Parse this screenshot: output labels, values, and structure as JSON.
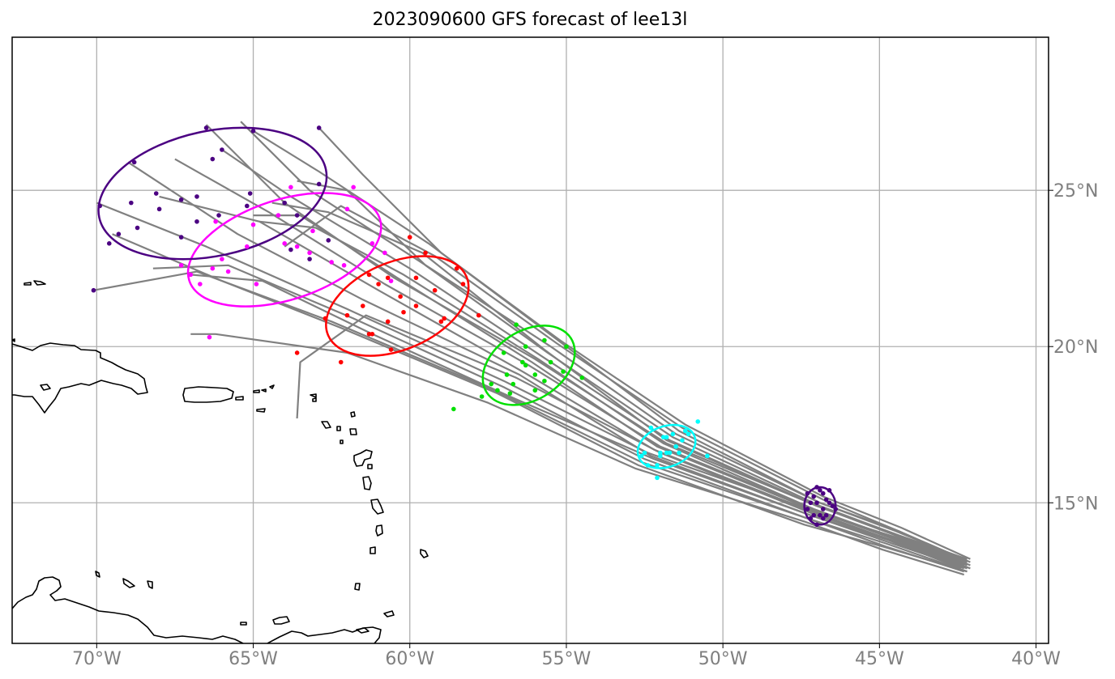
{
  "title": "2023090600 GFS forecast of lee13l",
  "map": {
    "lon_range": [
      -72.7,
      -39.6
    ],
    "lat_range": [
      10.5,
      29.9
    ],
    "lon_ticks": [
      {
        "value": -70,
        "label": "70°W"
      },
      {
        "value": -65,
        "label": "65°W"
      },
      {
        "value": -60,
        "label": "60°W"
      },
      {
        "value": -55,
        "label": "55°W"
      },
      {
        "value": -50,
        "label": "50°W"
      },
      {
        "value": -45,
        "label": "45°W"
      },
      {
        "value": -40,
        "label": "40°W"
      }
    ],
    "lat_ticks": [
      {
        "value": 15,
        "label": "15°N"
      },
      {
        "value": 20,
        "label": "20°N"
      },
      {
        "value": 25,
        "label": "25°N"
      }
    ],
    "grid": true,
    "colors": {
      "track": "#808080",
      "coast": "#000000",
      "grid": "#b0b0b0",
      "tick_text": "#7f7f7f"
    }
  },
  "chart_data": {
    "type": "map",
    "start_point": {
      "lon": -42.2,
      "lat": 13.0
    },
    "ensemble_tracks": [
      [
        [
          -42.2,
          13.2
        ],
        [
          -44.5,
          14.0
        ],
        [
          -47.0,
          14.9
        ],
        [
          -51.8,
          16.9
        ],
        [
          -56.0,
          19.6
        ],
        [
          -60.5,
          22.2
        ],
        [
          -64.0,
          24.6
        ],
        [
          -66.5,
          27.1
        ]
      ],
      [
        [
          -42.3,
          13.0
        ],
        [
          -44.6,
          13.9
        ],
        [
          -47.1,
          14.8
        ],
        [
          -52.0,
          16.8
        ],
        [
          -56.2,
          19.4
        ],
        [
          -60.8,
          22.0
        ],
        [
          -64.5,
          24.3
        ],
        [
          -67.5,
          26.0
        ]
      ],
      [
        [
          -42.1,
          13.1
        ],
        [
          -44.4,
          14.1
        ],
        [
          -46.9,
          15.0
        ],
        [
          -51.5,
          17.2
        ],
        [
          -55.5,
          20.0
        ],
        [
          -59.8,
          22.8
        ],
        [
          -63.2,
          25.0
        ],
        [
          -65.4,
          27.2
        ]
      ],
      [
        [
          -42.4,
          12.9
        ],
        [
          -44.7,
          13.8
        ],
        [
          -47.2,
          14.6
        ],
        [
          -52.3,
          16.5
        ],
        [
          -56.5,
          19.1
        ],
        [
          -61.5,
          21.5
        ],
        [
          -65.5,
          23.6
        ],
        [
          -69.0,
          25.9
        ]
      ],
      [
        [
          -42.2,
          13.0
        ],
        [
          -44.5,
          13.9
        ],
        [
          -47.0,
          14.7
        ],
        [
          -52.4,
          16.6
        ],
        [
          -57.0,
          18.9
        ],
        [
          -62.0,
          21.2
        ],
        [
          -66.5,
          23.2
        ],
        [
          -70.0,
          24.6
        ]
      ],
      [
        [
          -42.3,
          12.8
        ],
        [
          -44.8,
          13.6
        ],
        [
          -47.3,
          14.5
        ],
        [
          -52.6,
          16.3
        ],
        [
          -57.3,
          18.6
        ],
        [
          -62.5,
          20.8
        ],
        [
          -66.8,
          22.4
        ],
        [
          -70.1,
          21.8
        ]
      ],
      [
        [
          -42.1,
          13.2
        ],
        [
          -44.3,
          14.2
        ],
        [
          -46.8,
          15.2
        ],
        [
          -51.2,
          17.5
        ],
        [
          -55.2,
          20.2
        ],
        [
          -59.0,
          23.0
        ],
        [
          -61.5,
          25.5
        ],
        [
          -62.9,
          27.0
        ]
      ],
      [
        [
          -42.2,
          12.9
        ],
        [
          -44.6,
          13.7
        ],
        [
          -47.2,
          14.6
        ],
        [
          -52.2,
          16.4
        ],
        [
          -56.8,
          18.4
        ],
        [
          -61.2,
          20.4
        ],
        [
          -64.7,
          22.1
        ],
        [
          -67.0,
          22.3
        ]
      ],
      [
        [
          -42.4,
          13.1
        ],
        [
          -44.6,
          14.0
        ],
        [
          -47.0,
          14.9
        ],
        [
          -51.7,
          17.0
        ],
        [
          -55.8,
          19.7
        ],
        [
          -60.0,
          22.5
        ],
        [
          -63.8,
          24.8
        ],
        [
          -66.0,
          26.3
        ]
      ],
      [
        [
          -42.3,
          12.7
        ],
        [
          -44.9,
          13.5
        ],
        [
          -47.4,
          14.4
        ],
        [
          -52.8,
          16.1
        ],
        [
          -57.5,
          18.2
        ],
        [
          -62.0,
          19.8
        ],
        [
          -66.2,
          20.4
        ],
        [
          -67.0,
          20.4
        ]
      ],
      [
        [
          -42.2,
          13.1
        ],
        [
          -44.5,
          14.0
        ],
        [
          -46.9,
          14.9
        ],
        [
          -51.6,
          17.1
        ],
        [
          -55.6,
          19.8
        ],
        [
          -59.5,
          22.6
        ],
        [
          -62.0,
          25.0
        ],
        [
          -63.6,
          25.3
        ]
      ],
      [
        [
          -42.1,
          12.9
        ],
        [
          -44.6,
          13.8
        ],
        [
          -47.1,
          14.7
        ],
        [
          -52.2,
          16.7
        ],
        [
          -56.4,
          19.2
        ],
        [
          -61.0,
          21.8
        ],
        [
          -64.8,
          24.0
        ],
        [
          -68.0,
          24.8
        ]
      ],
      [
        [
          -42.3,
          13.0
        ],
        [
          -44.7,
          13.9
        ],
        [
          -47.2,
          14.8
        ],
        [
          -52.1,
          16.8
        ],
        [
          -56.1,
          19.5
        ],
        [
          -60.4,
          22.2
        ],
        [
          -63.5,
          24.2
        ],
        [
          -65.0,
          24.2
        ]
      ],
      [
        [
          -42.2,
          12.8
        ],
        [
          -44.8,
          13.7
        ],
        [
          -47.3,
          14.5
        ],
        [
          -52.5,
          16.4
        ],
        [
          -57.0,
          18.7
        ],
        [
          -61.8,
          20.9
        ],
        [
          -65.8,
          22.6
        ],
        [
          -68.2,
          22.5
        ]
      ],
      [
        [
          -42.4,
          13.0
        ],
        [
          -44.7,
          13.9
        ],
        [
          -47.1,
          14.8
        ],
        [
          -51.9,
          16.9
        ],
        [
          -55.9,
          19.6
        ],
        [
          -60.2,
          22.3
        ],
        [
          -63.0,
          23.8
        ],
        [
          -64.8,
          24.0
        ]
      ],
      [
        [
          -42.2,
          13.1
        ],
        [
          -44.4,
          14.1
        ],
        [
          -46.8,
          15.1
        ],
        [
          -51.3,
          17.4
        ],
        [
          -55.3,
          20.1
        ],
        [
          -59.2,
          22.9
        ],
        [
          -62.2,
          24.5
        ],
        [
          -64.0,
          23.2
        ]
      ],
      [
        [
          -42.3,
          12.9
        ],
        [
          -44.6,
          13.8
        ],
        [
          -47.0,
          14.6
        ],
        [
          -52.0,
          16.6
        ],
        [
          -56.6,
          19.0
        ],
        [
          -61.4,
          21.0
        ],
        [
          -63.5,
          19.5
        ],
        [
          -63.6,
          17.7
        ]
      ],
      [
        [
          -42.1,
          13.0
        ],
        [
          -44.5,
          14.0
        ],
        [
          -47.0,
          14.9
        ],
        [
          -51.8,
          17.0
        ],
        [
          -55.7,
          19.9
        ],
        [
          -59.6,
          23.0
        ],
        [
          -62.6,
          24.3
        ],
        [
          -64.4,
          24.6
        ]
      ],
      [
        [
          -42.3,
          13.2
        ],
        [
          -44.5,
          14.1
        ],
        [
          -46.9,
          15.0
        ],
        [
          -51.4,
          17.3
        ],
        [
          -55.4,
          20.3
        ],
        [
          -59.4,
          23.3
        ],
        [
          -62.9,
          25.6
        ],
        [
          -65.0,
          26.9
        ]
      ],
      [
        [
          -42.2,
          12.8
        ],
        [
          -44.9,
          13.6
        ],
        [
          -47.4,
          14.3
        ],
        [
          -52.7,
          16.2
        ],
        [
          -57.2,
          18.5
        ],
        [
          -62.2,
          20.6
        ],
        [
          -66.0,
          22.1
        ],
        [
          -69.5,
          23.6
        ]
      ]
    ],
    "forecast_times": [
      {
        "name": "t1",
        "color": "#4b0082",
        "points": [
          [
            -47.0,
            15.5
          ],
          [
            -46.8,
            15.3
          ],
          [
            -46.6,
            15.0
          ],
          [
            -46.9,
            14.6
          ],
          [
            -47.2,
            14.5
          ],
          [
            -46.7,
            14.6
          ],
          [
            -47.1,
            15.2
          ],
          [
            -47.3,
            14.8
          ],
          [
            -46.8,
            14.8
          ],
          [
            -46.5,
            14.9
          ],
          [
            -47.0,
            14.3
          ],
          [
            -47.2,
            15.0
          ],
          [
            -46.9,
            15.4
          ],
          [
            -46.7,
            15.1
          ],
          [
            -47.1,
            14.6
          ],
          [
            -46.4,
            14.8
          ],
          [
            -47.0,
            15.0
          ],
          [
            -46.8,
            14.5
          ],
          [
            -47.3,
            15.3
          ],
          [
            -46.6,
            15.4
          ]
        ],
        "ellipse": {
          "lon": -46.9,
          "lat": 14.9,
          "width_deg": 1.0,
          "height_deg": 1.2,
          "angle_deg": 0
        }
      },
      {
        "name": "t2",
        "color": "#00ffff",
        "points": [
          [
            -52.3,
            17.4
          ],
          [
            -51.9,
            17.1
          ],
          [
            -51.5,
            16.8
          ],
          [
            -52.0,
            16.5
          ],
          [
            -51.2,
            17.3
          ],
          [
            -52.5,
            16.6
          ],
          [
            -51.7,
            16.6
          ],
          [
            -50.8,
            17.6
          ],
          [
            -51.3,
            17.0
          ],
          [
            -52.1,
            16.2
          ],
          [
            -51.8,
            16.6
          ],
          [
            -52.1,
            15.8
          ],
          [
            -51.4,
            16.6
          ],
          [
            -50.5,
            16.5
          ],
          [
            -52.4,
            16.2
          ],
          [
            -51.6,
            17.2
          ],
          [
            -52.6,
            16.5
          ],
          [
            -51.1,
            17.2
          ],
          [
            -51.8,
            17.1
          ],
          [
            -52.0,
            16.6
          ]
        ],
        "ellipse": {
          "lon": -51.8,
          "lat": 16.8,
          "width_deg": 1.9,
          "height_deg": 1.3,
          "angle_deg": 20
        }
      },
      {
        "name": "t3",
        "color": "#00e000",
        "points": [
          [
            -56.6,
            20.7
          ],
          [
            -55.7,
            20.2
          ],
          [
            -55.0,
            20.0
          ],
          [
            -56.3,
            20.0
          ],
          [
            -57.0,
            19.8
          ],
          [
            -55.5,
            19.5
          ],
          [
            -56.4,
            19.5
          ],
          [
            -54.5,
            19.0
          ],
          [
            -55.1,
            19.2
          ],
          [
            -56.0,
            19.1
          ],
          [
            -56.9,
            19.1
          ],
          [
            -57.4,
            18.8
          ],
          [
            -56.8,
            18.5
          ],
          [
            -56.0,
            18.6
          ],
          [
            -57.7,
            18.4
          ],
          [
            -56.7,
            18.8
          ],
          [
            -58.6,
            18.0
          ],
          [
            -56.3,
            19.4
          ],
          [
            -57.2,
            18.6
          ],
          [
            -55.7,
            18.9
          ]
        ],
        "ellipse": {
          "lon": -56.2,
          "lat": 19.4,
          "width_deg": 3.2,
          "height_deg": 2.2,
          "angle_deg": 33
        }
      },
      {
        "name": "t4",
        "color": "#ff0000",
        "points": [
          [
            -60.0,
            23.5
          ],
          [
            -59.5,
            23.0
          ],
          [
            -58.5,
            22.5
          ],
          [
            -59.8,
            22.2
          ],
          [
            -61.3,
            22.3
          ],
          [
            -60.7,
            22.2
          ],
          [
            -58.3,
            22.0
          ],
          [
            -61.0,
            22.0
          ],
          [
            -59.2,
            21.8
          ],
          [
            -60.3,
            21.6
          ],
          [
            -61.5,
            21.3
          ],
          [
            -59.8,
            21.3
          ],
          [
            -60.2,
            21.1
          ],
          [
            -62.0,
            21.0
          ],
          [
            -59.0,
            20.8
          ],
          [
            -60.7,
            20.8
          ],
          [
            -62.7,
            20.9
          ],
          [
            -61.2,
            20.4
          ],
          [
            -60.6,
            19.9
          ],
          [
            -62.2,
            19.5
          ],
          [
            -63.6,
            19.8
          ],
          [
            -57.8,
            21.0
          ],
          [
            -58.9,
            20.9
          ],
          [
            -61.3,
            20.4
          ]
        ],
        "ellipse": {
          "lon": -60.4,
          "lat": 21.3,
          "width_deg": 4.8,
          "height_deg": 2.8,
          "angle_deg": 23
        }
      },
      {
        "name": "t5",
        "color": "#ff00ff",
        "points": [
          [
            -61.8,
            25.1
          ],
          [
            -63.8,
            25.1
          ],
          [
            -62.0,
            24.4
          ],
          [
            -64.2,
            24.2
          ],
          [
            -65.0,
            23.9
          ],
          [
            -66.2,
            24.0
          ],
          [
            -63.1,
            23.7
          ],
          [
            -61.2,
            23.3
          ],
          [
            -64.0,
            23.3
          ],
          [
            -65.2,
            23.2
          ],
          [
            -60.8,
            23.0
          ],
          [
            -62.5,
            22.7
          ],
          [
            -63.2,
            23.0
          ],
          [
            -66.0,
            22.8
          ],
          [
            -67.3,
            22.6
          ],
          [
            -64.9,
            22.0
          ],
          [
            -66.3,
            22.5
          ],
          [
            -65.8,
            22.4
          ],
          [
            -63.6,
            23.2
          ],
          [
            -67.0,
            22.3
          ],
          [
            -66.7,
            22.0
          ],
          [
            -66.4,
            20.3
          ],
          [
            -60.6,
            22.1
          ],
          [
            -62.1,
            22.6
          ]
        ],
        "ellipse": {
          "lon": -64.0,
          "lat": 23.1,
          "width_deg": 6.4,
          "height_deg": 3.2,
          "angle_deg": 18
        }
      },
      {
        "name": "t6",
        "color": "#4b0082",
        "points": [
          [
            -66.5,
            27.0
          ],
          [
            -65.0,
            26.9
          ],
          [
            -62.9,
            27.0
          ],
          [
            -66.0,
            26.3
          ],
          [
            -66.3,
            26.0
          ],
          [
            -68.8,
            25.9
          ],
          [
            -62.9,
            25.2
          ],
          [
            -65.1,
            24.9
          ],
          [
            -64.0,
            24.6
          ],
          [
            -66.8,
            24.8
          ],
          [
            -68.1,
            24.9
          ],
          [
            -67.3,
            24.7
          ],
          [
            -68.9,
            24.6
          ],
          [
            -68.0,
            24.4
          ],
          [
            -65.2,
            24.5
          ],
          [
            -66.1,
            24.2
          ],
          [
            -69.9,
            24.5
          ],
          [
            -66.8,
            24.0
          ],
          [
            -63.6,
            24.2
          ],
          [
            -68.7,
            23.8
          ],
          [
            -67.3,
            23.5
          ],
          [
            -69.3,
            23.6
          ],
          [
            -62.6,
            23.4
          ],
          [
            -63.8,
            23.1
          ],
          [
            -69.6,
            23.3
          ],
          [
            -70.1,
            21.8
          ],
          [
            -63.2,
            22.8
          ]
        ],
        "ellipse": {
          "lon": -66.3,
          "lat": 24.9,
          "width_deg": 7.4,
          "height_deg": 4.0,
          "angle_deg": 12
        }
      }
    ]
  }
}
